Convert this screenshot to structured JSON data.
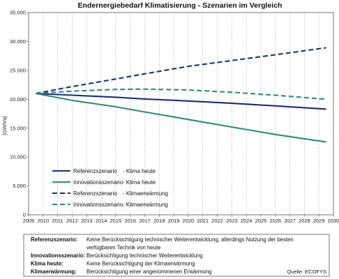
{
  "chart_data": {
    "type": "line",
    "title": "Endernergiebedarf Klimatisierung - Szenarien im Vergleich",
    "ylabel": "[GWh/a]",
    "xlabel": "",
    "xlim": [
      2009,
      2030
    ],
    "ylim": [
      0,
      35000
    ],
    "x_ticks": [
      "2009",
      "2010",
      "2011",
      "2012",
      "2013",
      "2014",
      "2015",
      "2016",
      "2017",
      "2018",
      "2019",
      "2020",
      "2021",
      "2022",
      "2023",
      "2024",
      "2025",
      "2026",
      "2027",
      "2028",
      "2029",
      "2030"
    ],
    "y_ticks": [
      "0",
      "5.000",
      "10.000",
      "15.000",
      "20.000",
      "25.000",
      "30.000",
      "35.000"
    ],
    "x": [
      2009.5,
      2012,
      2015,
      2017,
      2020,
      2023,
      2026,
      2029.5
    ],
    "grid": "vertical dotted lines at each year",
    "legend_position": "lower-left",
    "series": [
      {
        "name": "Referenzszenario - Klima heute",
        "legend_name": "Referenzszenario",
        "legend_suffix": "- Klima heute",
        "color": "#1b2f7a",
        "dash": "solid",
        "values": [
          21000,
          20700,
          20350,
          20050,
          19700,
          19300,
          18850,
          18300
        ]
      },
      {
        "name": "Innovationsszenario - Klima heute",
        "legend_name": "Innovationsszenario",
        "legend_suffix": "- Klima heute",
        "color": "#2e8b76",
        "dash": "solid",
        "values": [
          21000,
          19800,
          18700,
          17800,
          16500,
          15200,
          13900,
          12600
        ]
      },
      {
        "name": "Referenzszenario - Klimaerwärmung",
        "legend_name": "Referenzszenario",
        "legend_suffix": "- Klimaerwärmung",
        "color": "#1b2f7a",
        "dash": "dashed",
        "values": [
          21000,
          22200,
          23500,
          24400,
          25700,
          26700,
          27700,
          28900
        ]
      },
      {
        "name": "Innovationsszenario - Klimaerwärmung",
        "legend_name": "Innovationsszenario",
        "legend_suffix": "- Klimaerwärmung",
        "color": "#2e8b76",
        "dash": "dashed",
        "values": [
          21000,
          21400,
          21700,
          21750,
          21600,
          21200,
          20700,
          20000
        ]
      }
    ]
  },
  "notes": [
    {
      "key": "Referenzszenario:",
      "text": "Keine Berücksichtigung technischer Weiterentwicklung, allerdings Nutzung der besten"
    },
    {
      "key": "",
      "text": "verfügbaren Technik von heute"
    },
    {
      "key": "Innovationsszenario:",
      "text": "Berücksichtigung technischer Weiterentwicklung"
    },
    {
      "key": "Klima heute:",
      "text": "Keine Berücksichtigung der Klimaerwärmung"
    },
    {
      "key": "Klimaerwärmung:",
      "text": "Berücksichtigung einer angenommenen Erwärmung"
    }
  ],
  "source": "Quelle: ECOFYS"
}
